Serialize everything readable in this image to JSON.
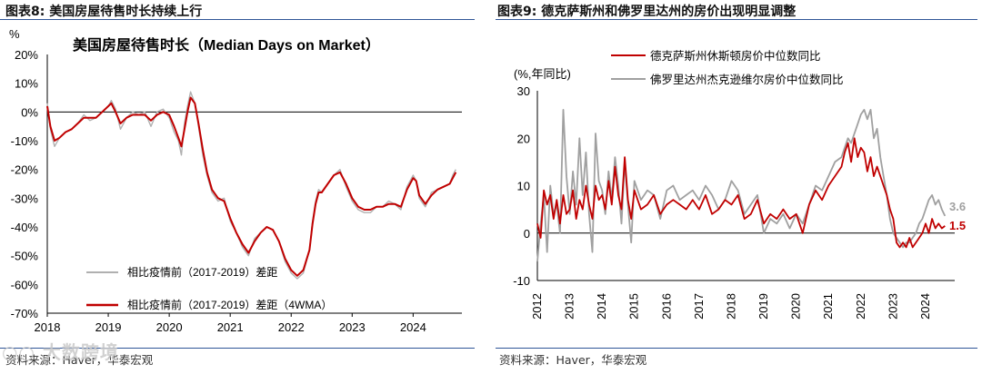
{
  "left": {
    "header": "图表8:  美国房屋待售时长持续上行",
    "source": "资料来源：Haver，华泰宏观",
    "chart_data": {
      "type": "line",
      "title": "美国房屋待售时长（Median Days on Market）",
      "ylabel": "%",
      "ylim": [
        -70,
        20
      ],
      "yticks": [
        "20%",
        "10%",
        "0%",
        "-10%",
        "-20%",
        "-30%",
        "-40%",
        "-50%",
        "-60%",
        "-70%"
      ],
      "ytick_values": [
        20,
        10,
        0,
        -10,
        -20,
        -30,
        -40,
        -50,
        -60,
        -70
      ],
      "xlim": [
        2018,
        2024.8
      ],
      "xtick_labels": [
        "2018",
        "2019",
        "2020",
        "2021",
        "2022",
        "2023",
        "2024"
      ],
      "xtick_values": [
        2018,
        2019,
        2020,
        2021,
        2022,
        2023,
        2024
      ],
      "legend": [
        "相比疫情前（2017-2019）差距",
        "相比疫情前（2017-2019）差距（4WMA）"
      ],
      "series": [
        {
          "name": "相比疫情前（2017-2019）差距",
          "color": "#b0b0b0",
          "x": [
            2018.0,
            2018.05,
            2018.12,
            2018.2,
            2018.3,
            2018.4,
            2018.5,
            2018.6,
            2018.7,
            2018.8,
            2018.9,
            2019.0,
            2019.05,
            2019.12,
            2019.2,
            2019.3,
            2019.4,
            2019.5,
            2019.6,
            2019.7,
            2019.8,
            2019.9,
            2020.0,
            2020.08,
            2020.15,
            2020.2,
            2020.25,
            2020.3,
            2020.35,
            2020.42,
            2020.48,
            2020.55,
            2020.62,
            2020.7,
            2020.8,
            2020.9,
            2021.0,
            2021.1,
            2021.2,
            2021.3,
            2021.4,
            2021.5,
            2021.6,
            2021.7,
            2021.8,
            2021.9,
            2022.0,
            2022.1,
            2022.2,
            2022.3,
            2022.35,
            2022.4,
            2022.45,
            2022.5,
            2022.6,
            2022.7,
            2022.8,
            2022.9,
            2023.0,
            2023.1,
            2023.2,
            2023.3,
            2023.4,
            2023.5,
            2023.6,
            2023.7,
            2023.8,
            2023.9,
            2024.0,
            2024.05,
            2024.1,
            2024.2,
            2024.3,
            2024.4,
            2024.5,
            2024.6,
            2024.65,
            2024.7
          ],
          "values": [
            3,
            -6,
            -12,
            -9,
            -7,
            -6,
            -4,
            -1,
            -3,
            -2,
            0,
            2,
            4,
            1,
            -6,
            -2,
            0,
            -1,
            0,
            -5,
            0,
            1,
            -2,
            -7,
            -10,
            -15,
            -4,
            2,
            7,
            3,
            -5,
            -15,
            -22,
            -28,
            -31,
            -30,
            -38,
            -42,
            -47,
            -50,
            -44,
            -42,
            -40,
            -41,
            -45,
            -52,
            -56,
            -58,
            -56,
            -48,
            -38,
            -31,
            -27,
            -28,
            -25,
            -22,
            -20,
            -26,
            -31,
            -34,
            -35,
            -35,
            -33,
            -33,
            -31,
            -32,
            -34,
            -26,
            -22,
            -24,
            -30,
            -33,
            -28,
            -27,
            -26,
            -25,
            -22,
            -20
          ]
        },
        {
          "name": "相比疫情前（2017-2019）差距（4WMA）",
          "color": "#c00000",
          "x": [
            2018.0,
            2018.05,
            2018.12,
            2018.2,
            2018.3,
            2018.4,
            2018.5,
            2018.6,
            2018.7,
            2018.8,
            2018.9,
            2019.0,
            2019.05,
            2019.12,
            2019.2,
            2019.3,
            2019.4,
            2019.5,
            2019.6,
            2019.7,
            2019.8,
            2019.9,
            2020.0,
            2020.08,
            2020.15,
            2020.2,
            2020.25,
            2020.3,
            2020.35,
            2020.42,
            2020.48,
            2020.55,
            2020.62,
            2020.7,
            2020.8,
            2020.9,
            2021.0,
            2021.1,
            2021.2,
            2021.3,
            2021.4,
            2021.5,
            2021.6,
            2021.7,
            2021.8,
            2021.9,
            2022.0,
            2022.1,
            2022.2,
            2022.3,
            2022.35,
            2022.4,
            2022.45,
            2022.5,
            2022.6,
            2022.7,
            2022.8,
            2022.9,
            2023.0,
            2023.1,
            2023.2,
            2023.3,
            2023.4,
            2023.5,
            2023.6,
            2023.7,
            2023.8,
            2023.9,
            2024.0,
            2024.05,
            2024.1,
            2024.2,
            2024.3,
            2024.4,
            2024.5,
            2024.6,
            2024.65,
            2024.7
          ],
          "values": [
            2,
            -5,
            -10,
            -9,
            -7,
            -6,
            -4,
            -2,
            -2,
            -2,
            0,
            2,
            3,
            0,
            -4,
            -2,
            -1,
            -1,
            -1,
            -3,
            -1,
            0,
            -1,
            -5,
            -9,
            -12,
            -6,
            0,
            5,
            3,
            -4,
            -13,
            -21,
            -27,
            -30,
            -31,
            -37,
            -42,
            -46,
            -49,
            -45,
            -42,
            -40,
            -41,
            -45,
            -51,
            -55,
            -57,
            -55,
            -48,
            -39,
            -32,
            -28,
            -28,
            -25,
            -22,
            -21,
            -25,
            -30,
            -33,
            -34,
            -34,
            -33,
            -33,
            -32,
            -32,
            -33,
            -27,
            -23,
            -24,
            -29,
            -32,
            -29,
            -27,
            -26,
            -25,
            -23,
            -21
          ]
        }
      ]
    }
  },
  "right": {
    "header": "图表9:  德克萨斯州和佛罗里达州的房价出现明显调整",
    "source": "资料来源：Haver，华泰宏观",
    "chart_data": {
      "type": "line",
      "title": "",
      "ylabel": "(%,年同比)",
      "ylim": [
        -10,
        30
      ],
      "yticks": [
        "30",
        "20",
        "10",
        "0",
        "-10"
      ],
      "ytick_values": [
        30,
        20,
        10,
        0,
        -10
      ],
      "xlim": [
        2012,
        2024.9
      ],
      "xtick_labels": [
        "2012",
        "2013",
        "2014",
        "2015",
        "2016",
        "2017",
        "2018",
        "2019",
        "2020",
        "2021",
        "2022",
        "2023",
        "2024"
      ],
      "xtick_values": [
        2012,
        2013,
        2014,
        2015,
        2016,
        2017,
        2018,
        2019,
        2020,
        2021,
        2022,
        2023,
        2024
      ],
      "legend": [
        "德克萨斯州休斯顿房价中位数同比",
        "佛罗里达州杰克逊维尔房价中位数同比"
      ],
      "end_labels": [
        {
          "text": "3.6",
          "color": "#a0a0a0",
          "value": 3.6
        },
        {
          "text": "1.5",
          "color": "#c00000",
          "value": 1.5
        }
      ],
      "series": [
        {
          "name": "德克萨斯州休斯顿房价中位数同比",
          "color": "#c00000",
          "x": [
            2012.0,
            2012.1,
            2012.2,
            2012.3,
            2012.4,
            2012.5,
            2012.6,
            2012.7,
            2012.8,
            2012.9,
            2013.0,
            2013.1,
            2013.2,
            2013.3,
            2013.4,
            2013.5,
            2013.6,
            2013.7,
            2013.8,
            2013.9,
            2014.0,
            2014.1,
            2014.2,
            2014.3,
            2014.4,
            2014.5,
            2014.6,
            2014.7,
            2014.8,
            2014.9,
            2015.0,
            2015.2,
            2015.4,
            2015.6,
            2015.8,
            2016.0,
            2016.2,
            2016.4,
            2016.6,
            2016.8,
            2017.0,
            2017.2,
            2017.4,
            2017.6,
            2017.8,
            2018.0,
            2018.2,
            2018.4,
            2018.6,
            2018.8,
            2019.0,
            2019.2,
            2019.4,
            2019.6,
            2019.8,
            2020.0,
            2020.2,
            2020.4,
            2020.6,
            2020.8,
            2021.0,
            2021.2,
            2021.4,
            2021.5,
            2021.6,
            2021.7,
            2021.8,
            2021.9,
            2022.0,
            2022.1,
            2022.2,
            2022.3,
            2022.4,
            2022.5,
            2022.6,
            2022.7,
            2022.8,
            2022.9,
            2023.0,
            2023.1,
            2023.2,
            2023.3,
            2023.4,
            2023.5,
            2023.6,
            2023.7,
            2023.8,
            2023.9,
            2024.0,
            2024.1,
            2024.2,
            2024.3,
            2024.4,
            2024.5,
            2024.6
          ],
          "values": [
            2,
            -1,
            9,
            6,
            8,
            3,
            7,
            2,
            8,
            4,
            5,
            9,
            3,
            7,
            5,
            10,
            6,
            3,
            10,
            7,
            8,
            5,
            11,
            6,
            14,
            8,
            5,
            16,
            7,
            3,
            9,
            5,
            6,
            8,
            4,
            6,
            7,
            6,
            5,
            7,
            5,
            8,
            4,
            5,
            7,
            6,
            8,
            3,
            4,
            7,
            2,
            4,
            3,
            5,
            3,
            4,
            0,
            6,
            9,
            7,
            10,
            12,
            14,
            17,
            19,
            15,
            20,
            16,
            18,
            17,
            13,
            16,
            12,
            14,
            12,
            10,
            8,
            5,
            3,
            -2,
            -3,
            -2,
            -3,
            -1,
            -3,
            -2,
            -1,
            0,
            2,
            0,
            3,
            1,
            2,
            1,
            1.5
          ]
        },
        {
          "name": "佛罗里达州杰克逊维尔房价中位数同比",
          "color": "#a0a0a0",
          "x": [
            2012.0,
            2012.1,
            2012.2,
            2012.3,
            2012.4,
            2012.5,
            2012.6,
            2012.7,
            2012.8,
            2012.9,
            2013.0,
            2013.1,
            2013.2,
            2013.3,
            2013.4,
            2013.5,
            2013.6,
            2013.7,
            2013.8,
            2013.9,
            2014.0,
            2014.1,
            2014.2,
            2014.3,
            2014.4,
            2014.5,
            2014.6,
            2014.7,
            2014.8,
            2014.9,
            2015.0,
            2015.2,
            2015.4,
            2015.6,
            2015.8,
            2016.0,
            2016.2,
            2016.4,
            2016.6,
            2016.8,
            2017.0,
            2017.2,
            2017.4,
            2017.6,
            2017.8,
            2018.0,
            2018.2,
            2018.4,
            2018.6,
            2018.8,
            2019.0,
            2019.2,
            2019.4,
            2019.6,
            2019.8,
            2020.0,
            2020.2,
            2020.4,
            2020.6,
            2020.8,
            2021.0,
            2021.2,
            2021.4,
            2021.5,
            2021.6,
            2021.7,
            2021.8,
            2021.9,
            2022.0,
            2022.1,
            2022.2,
            2022.3,
            2022.4,
            2022.5,
            2022.6,
            2022.7,
            2022.8,
            2022.9,
            2023.0,
            2023.1,
            2023.2,
            2023.3,
            2023.4,
            2023.5,
            2023.6,
            2023.7,
            2023.8,
            2023.9,
            2024.0,
            2024.1,
            2024.2,
            2024.3,
            2024.4,
            2024.5,
            2024.6
          ],
          "values": [
            -6,
            2,
            8,
            -4,
            10,
            4,
            6,
            0,
            26,
            12,
            4,
            13,
            6,
            20,
            8,
            17,
            4,
            -4,
            21,
            11,
            9,
            4,
            13,
            7,
            16,
            10,
            2,
            15,
            6,
            -2,
            11,
            7,
            9,
            8,
            3,
            9,
            10,
            7,
            8,
            9,
            7,
            10,
            8,
            5,
            7,
            11,
            9,
            4,
            6,
            8,
            0,
            3,
            2,
            4,
            1,
            4,
            2,
            6,
            10,
            9,
            12,
            15,
            16,
            18,
            20,
            19,
            21,
            23,
            25,
            26,
            24,
            26,
            20,
            22,
            16,
            12,
            8,
            3,
            0,
            -1,
            -2,
            -3,
            -2,
            -2,
            -1,
            0,
            2,
            3,
            5,
            7,
            8,
            6,
            7,
            5,
            3.6
          ]
        }
      ]
    }
  }
}
